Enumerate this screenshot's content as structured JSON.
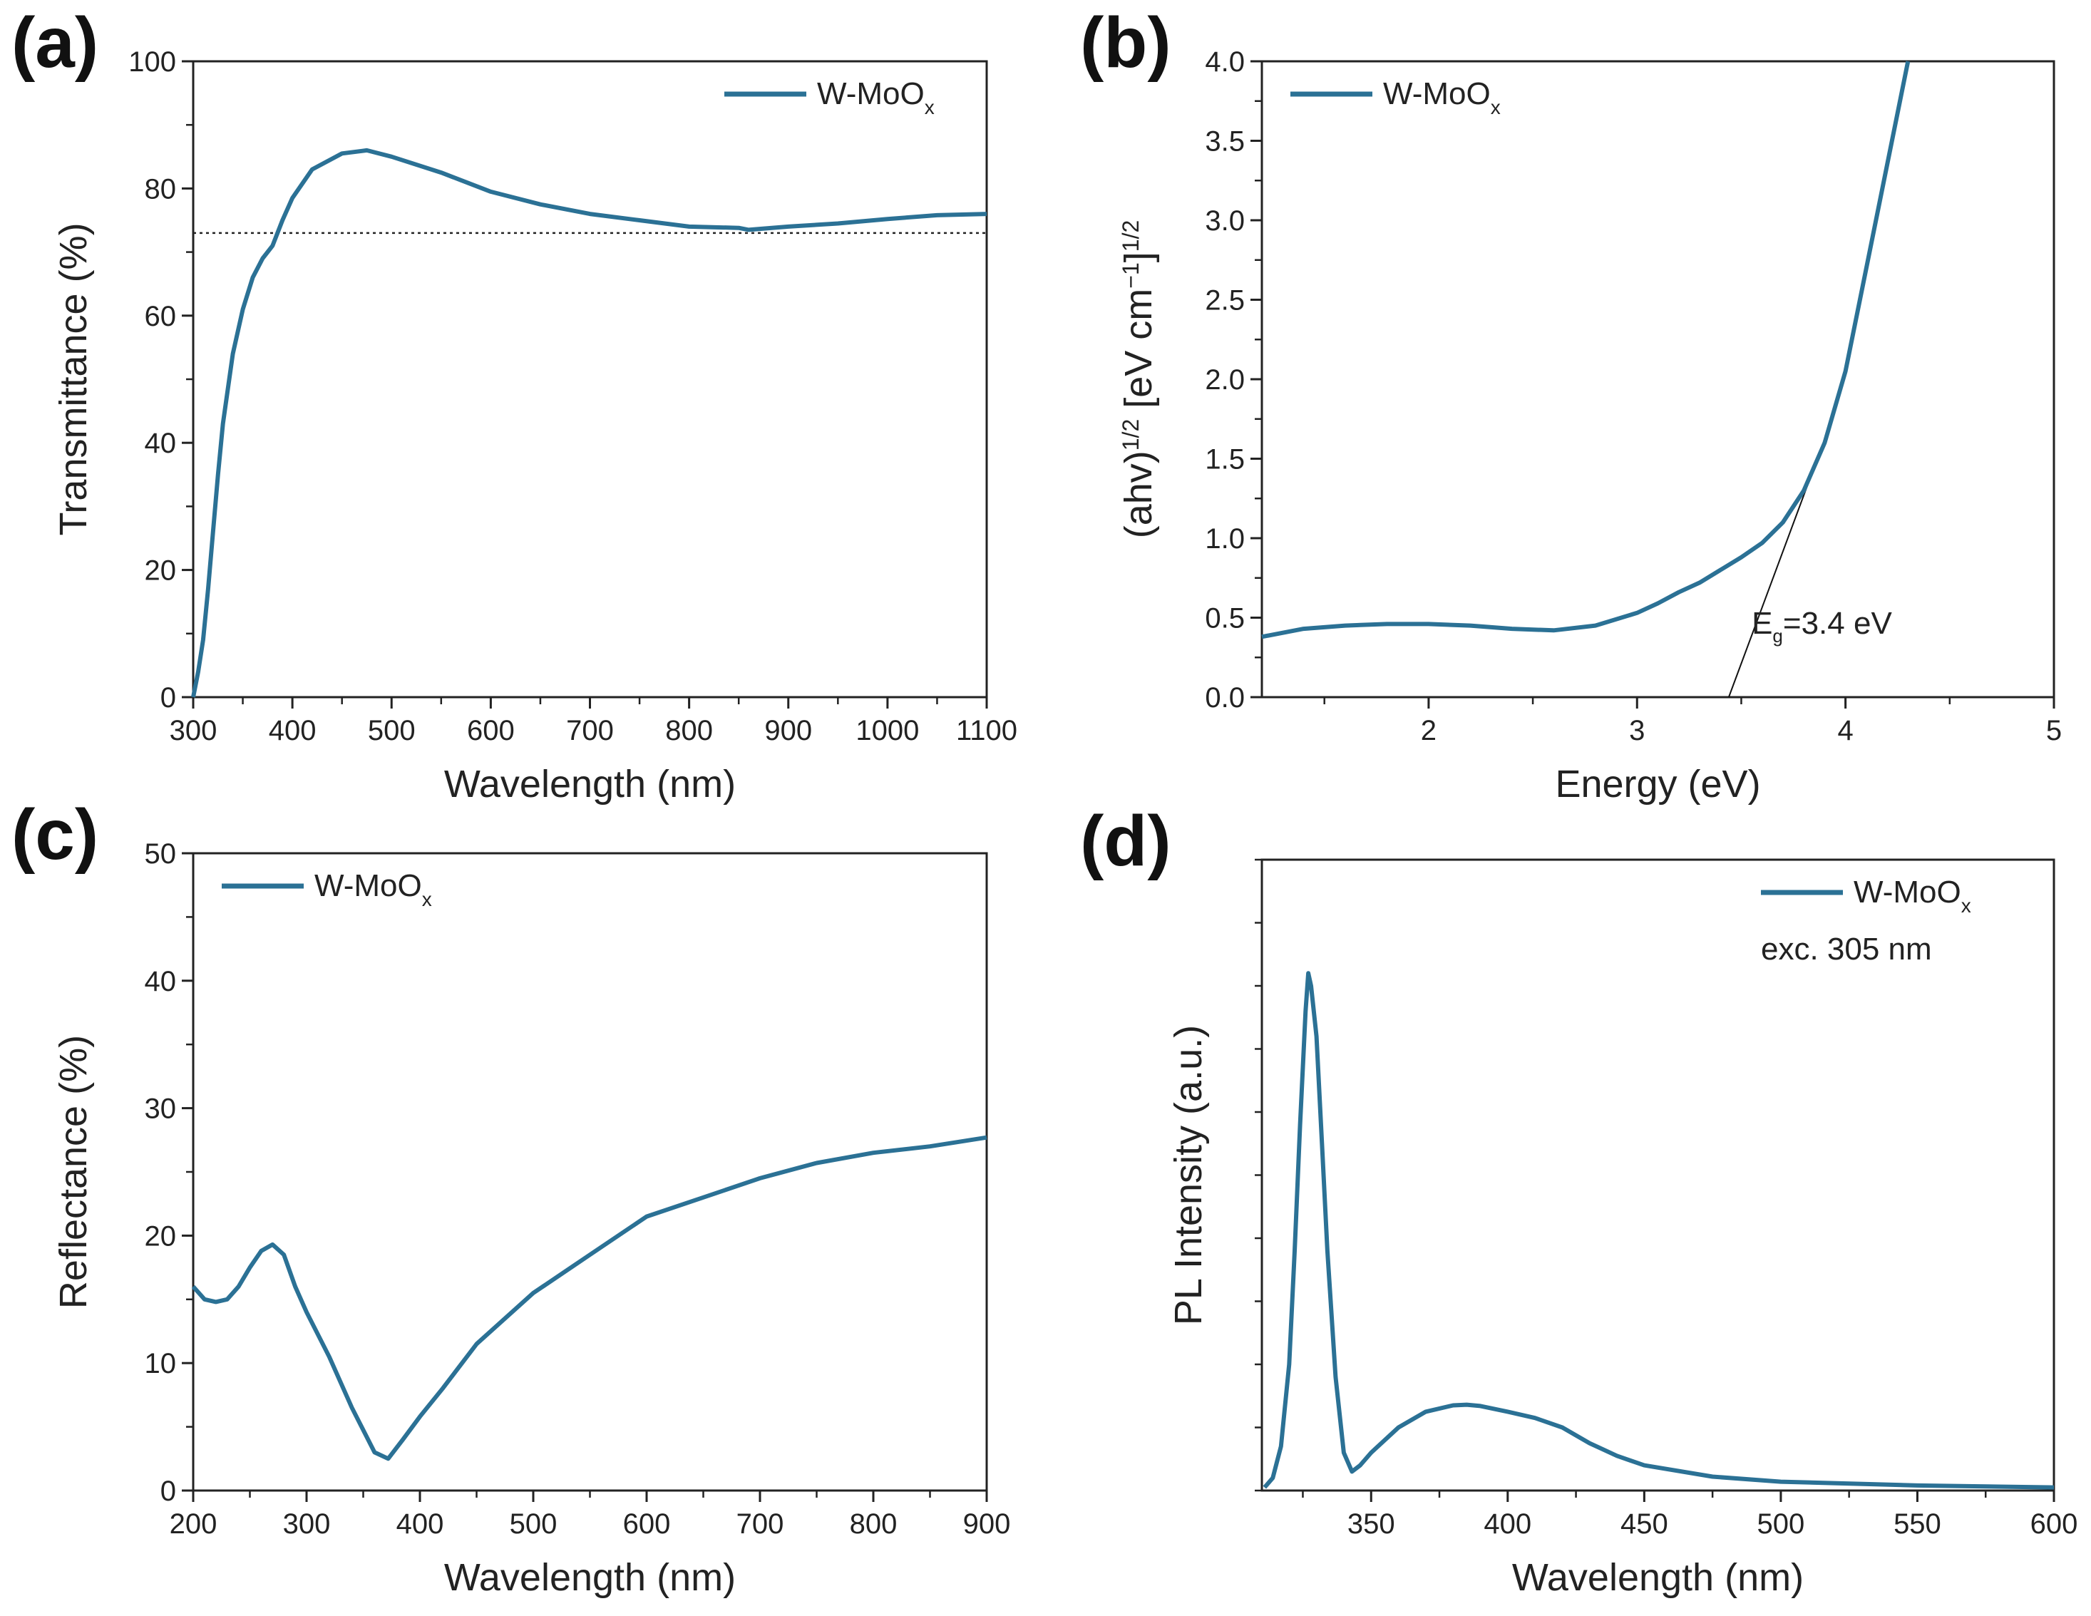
{
  "colors": {
    "series": "#2b7195",
    "axis": "#222222"
  },
  "chart_data": [
    {
      "panel": "(a)",
      "type": "line",
      "xlabel": "Wavelength (nm)",
      "ylabel": "Transmittance (%)",
      "xlim": [
        300,
        1100
      ],
      "ylim": [
        0,
        100
      ],
      "xticks": [
        300,
        400,
        500,
        600,
        700,
        800,
        900,
        1000,
        1100
      ],
      "yticks": [
        0,
        20,
        40,
        60,
        80,
        100
      ],
      "legend": {
        "label": "W-MoO",
        "sub": "x",
        "position": "top-right"
      },
      "reference_line_y": 73,
      "series": [
        {
          "name": "W-MoOx",
          "x": [
            300,
            305,
            310,
            315,
            320,
            325,
            330,
            340,
            350,
            360,
            370,
            380,
            390,
            400,
            420,
            450,
            475,
            500,
            550,
            600,
            650,
            700,
            750,
            800,
            850,
            860,
            900,
            950,
            1000,
            1050,
            1100
          ],
          "y": [
            0,
            4,
            9,
            17,
            26,
            35,
            43,
            54,
            61,
            66,
            69,
            71,
            75,
            78.5,
            83,
            85.5,
            86,
            85,
            82.5,
            79.5,
            77.5,
            76,
            75,
            74,
            73.8,
            73.5,
            74,
            74.5,
            75.2,
            75.8,
            76
          ]
        }
      ]
    },
    {
      "panel": "(b)",
      "type": "line",
      "xlabel": "Energy (eV)",
      "ylabel_parts": [
        "(ahv)",
        "1/2",
        " [eV cm",
        "−1",
        "]",
        "1/2"
      ],
      "xlim": [
        1.2,
        5
      ],
      "ylim": [
        0,
        4
      ],
      "xticks": [
        2,
        3,
        4,
        5
      ],
      "yticks": [
        "0.0",
        "0.5",
        "1.0",
        "1.5",
        "2.0",
        "2.5",
        "3.0",
        "3.5",
        "4.0"
      ],
      "legend": {
        "label": "W-MoO",
        "sub": "x",
        "position": "top-left"
      },
      "annotation": {
        "main": "E",
        "sub": "g",
        "rest": "=3.4 eV"
      },
      "tangent_line": {
        "x": [
          3.44,
          3.95
        ],
        "y": [
          0,
          1.8
        ]
      },
      "series": [
        {
          "name": "W-MoOx",
          "x": [
            1.2,
            1.4,
            1.6,
            1.8,
            2.0,
            2.2,
            2.4,
            2.6,
            2.8,
            3.0,
            3.1,
            3.2,
            3.3,
            3.4,
            3.5,
            3.6,
            3.7,
            3.8,
            3.9,
            4.0,
            4.1,
            4.2,
            4.3
          ],
          "y": [
            0.38,
            0.43,
            0.45,
            0.46,
            0.46,
            0.45,
            0.43,
            0.42,
            0.45,
            0.53,
            0.59,
            0.66,
            0.72,
            0.8,
            0.88,
            0.97,
            1.1,
            1.3,
            1.6,
            2.05,
            2.7,
            3.35,
            4.0
          ]
        }
      ]
    },
    {
      "panel": "(c)",
      "type": "line",
      "xlabel": "Wavelength (nm)",
      "ylabel": "Reflectance (%)",
      "xlim": [
        200,
        900
      ],
      "ylim": [
        0,
        50
      ],
      "xticks": [
        200,
        300,
        400,
        500,
        600,
        700,
        800,
        900
      ],
      "yticks": [
        0,
        10,
        20,
        30,
        40,
        50
      ],
      "legend": {
        "label": "W-MoO",
        "sub": "x",
        "position": "top-left"
      },
      "series": [
        {
          "name": "W-MoOx",
          "x": [
            200,
            210,
            220,
            230,
            240,
            250,
            260,
            270,
            280,
            290,
            300,
            320,
            340,
            360,
            372,
            385,
            400,
            420,
            450,
            500,
            550,
            600,
            650,
            700,
            750,
            800,
            850,
            900
          ],
          "y": [
            16,
            15,
            14.8,
            15,
            16,
            17.5,
            18.8,
            19.3,
            18.5,
            16,
            14,
            10.5,
            6.5,
            3,
            2.5,
            4,
            5.8,
            8,
            11.5,
            15.5,
            18.5,
            21.5,
            23,
            24.5,
            25.7,
            26.5,
            27,
            27.7
          ]
        }
      ]
    },
    {
      "panel": "(d)",
      "type": "line",
      "xlabel": "Wavelength (nm)",
      "ylabel": "PL Intensity (a.u.)",
      "xlim": [
        310,
        600
      ],
      "ylim": [
        0,
        1
      ],
      "xticks": [
        350,
        400,
        450,
        500,
        550,
        600
      ],
      "legend": {
        "label": "W-MoO",
        "sub": "x",
        "note": "exc. 305 nm",
        "position": "top-right"
      },
      "series": [
        {
          "name": "W-MoOx",
          "x": [
            311,
            314,
            317,
            320,
            322,
            324,
            326,
            327,
            328,
            330,
            332,
            334,
            337,
            340,
            343,
            346,
            350,
            360,
            370,
            380,
            385,
            390,
            400,
            410,
            420,
            430,
            440,
            450,
            475,
            500,
            550,
            600
          ],
          "y": [
            0.005,
            0.02,
            0.07,
            0.2,
            0.38,
            0.58,
            0.76,
            0.82,
            0.8,
            0.72,
            0.55,
            0.38,
            0.18,
            0.06,
            0.03,
            0.04,
            0.06,
            0.1,
            0.125,
            0.135,
            0.136,
            0.134,
            0.125,
            0.115,
            0.1,
            0.075,
            0.055,
            0.04,
            0.022,
            0.014,
            0.008,
            0.005
          ]
        }
      ]
    }
  ]
}
